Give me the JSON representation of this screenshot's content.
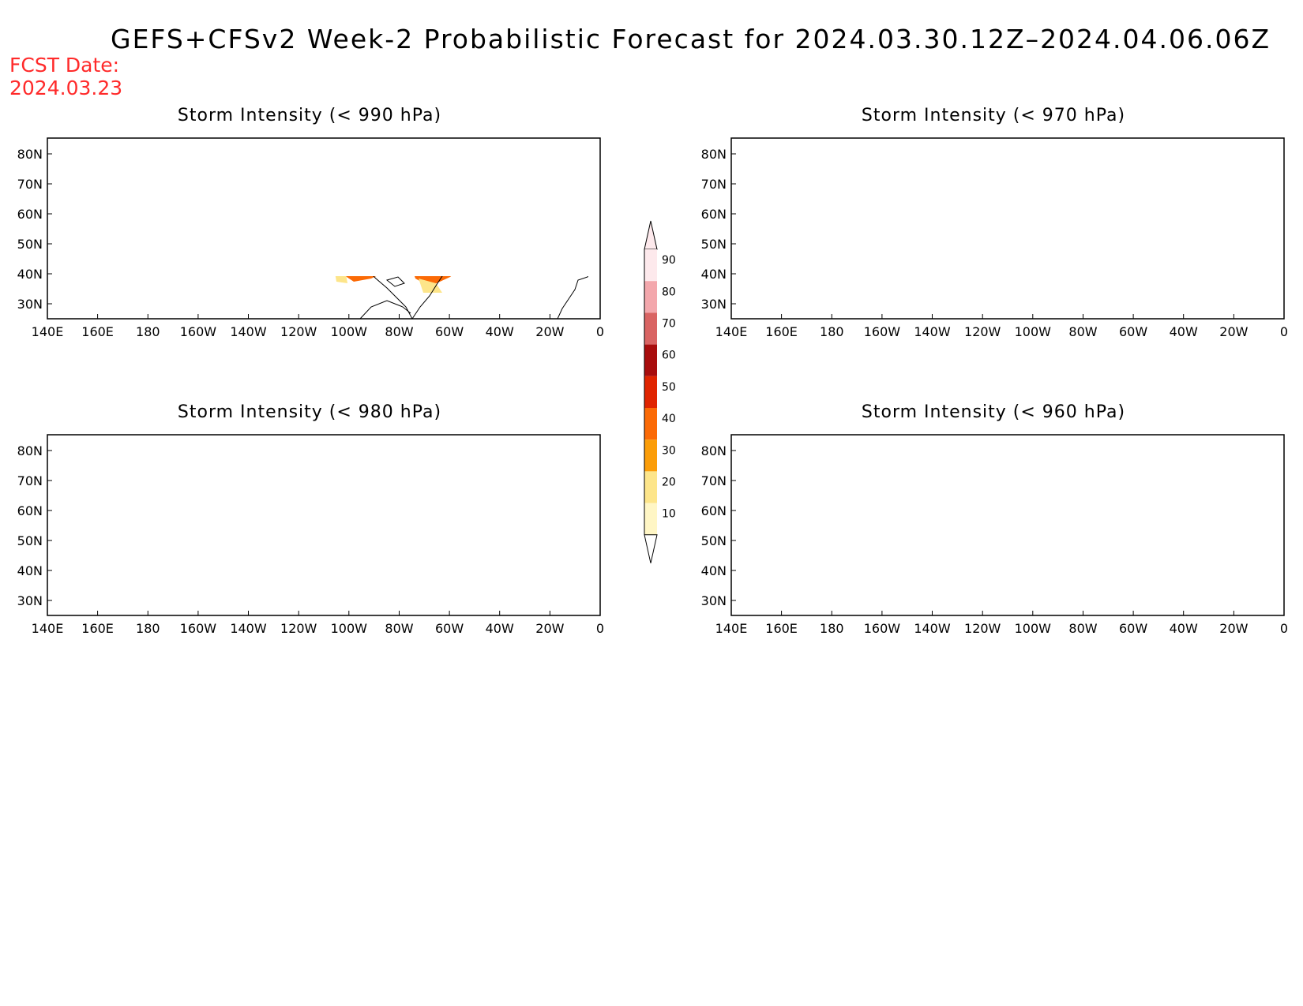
{
  "title": "GEFS+CFSv2 Week-2 Probabilistic Forecast for 2024.03.30.12Z–2024.04.06.06Z",
  "fcst_date_label": "FCST Date:",
  "fcst_date": "2024.03.23",
  "lat_labels": [
    "80N",
    "70N",
    "60N",
    "50N",
    "40N",
    "30N"
  ],
  "lon_labels": [
    "140E",
    "160E",
    "180",
    "160W",
    "140W",
    "120W",
    "100W",
    "80W",
    "60W",
    "40W",
    "20W",
    "0"
  ],
  "colorbar": {
    "levels": [
      "90",
      "80",
      "70",
      "60",
      "50",
      "40",
      "30",
      "20",
      "10"
    ],
    "colors": [
      "#fde9ec",
      "#f3a7ac",
      "#d96463",
      "#a80d0d",
      "#e02400",
      "#fb6a06",
      "#fb9d08",
      "#fde58a",
      "#fff6c5"
    ]
  },
  "panels": [
    {
      "id": "p990",
      "title": "Storm Intensity (< 990 hPa)"
    },
    {
      "id": "p980",
      "title": "Storm Intensity (< 980 hPa)"
    },
    {
      "id": "p970",
      "title": "Storm Intensity (< 970 hPa)"
    },
    {
      "id": "p960",
      "title": "Storm Intensity (< 960 hPa)"
    }
  ]
}
